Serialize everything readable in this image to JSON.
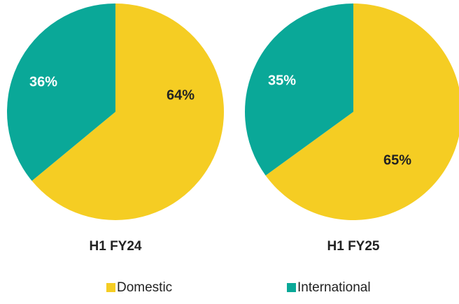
{
  "chart_data": [
    {
      "type": "pie",
      "title": "H1 FY24",
      "categories": [
        "Domestic",
        "International"
      ],
      "values": [
        64,
        36
      ],
      "value_labels": [
        "64%",
        "36%"
      ],
      "colors": [
        "#F5CD23",
        "#0AA898"
      ],
      "label_colors": [
        "#222222",
        "#ffffff"
      ]
    },
    {
      "type": "pie",
      "title": "H1 FY25",
      "categories": [
        "Domestic",
        "International"
      ],
      "values": [
        65,
        35
      ],
      "value_labels": [
        "65%",
        "35%"
      ],
      "colors": [
        "#F5CD23",
        "#0AA898"
      ],
      "label_colors": [
        "#222222",
        "#ffffff"
      ]
    }
  ]
}
